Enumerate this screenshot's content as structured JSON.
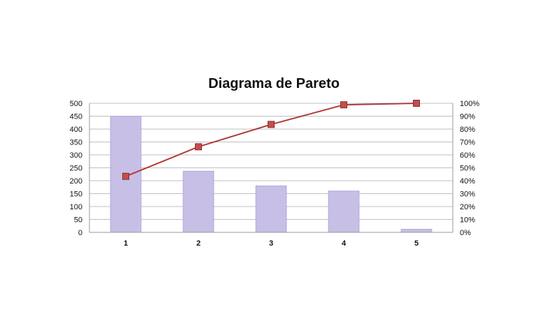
{
  "chart_data": {
    "type": "bar",
    "title": "Diagrama de Pareto",
    "categories": [
      "1",
      "2",
      "3",
      "4",
      "5"
    ],
    "series": [
      {
        "kind": "bar",
        "axis": "left",
        "values": [
          450,
          237,
          180,
          160,
          12
        ]
      },
      {
        "kind": "line",
        "axis": "right",
        "values": [
          0.434,
          0.663,
          0.836,
          0.988,
          1.0
        ]
      }
    ],
    "ylim_left": [
      0,
      500
    ],
    "yticks_left": [
      0,
      50,
      100,
      150,
      200,
      250,
      300,
      350,
      400,
      450,
      500
    ],
    "ylim_right": [
      0,
      1
    ],
    "yticks_right_labels": [
      "0%",
      "10%",
      "20%",
      "30%",
      "40%",
      "50%",
      "60%",
      "70%",
      "80%",
      "90%",
      "100%"
    ],
    "grid": true,
    "legend": "none",
    "colors": {
      "bar_fill": "#c8bfe7",
      "bar_stroke": "#b2a6dc",
      "line": "#b03a3a",
      "marker_fill": "#c0504d",
      "marker_stroke": "#8b2a2a",
      "grid": "#bfbfbf",
      "axis": "#9a9a9a"
    }
  }
}
